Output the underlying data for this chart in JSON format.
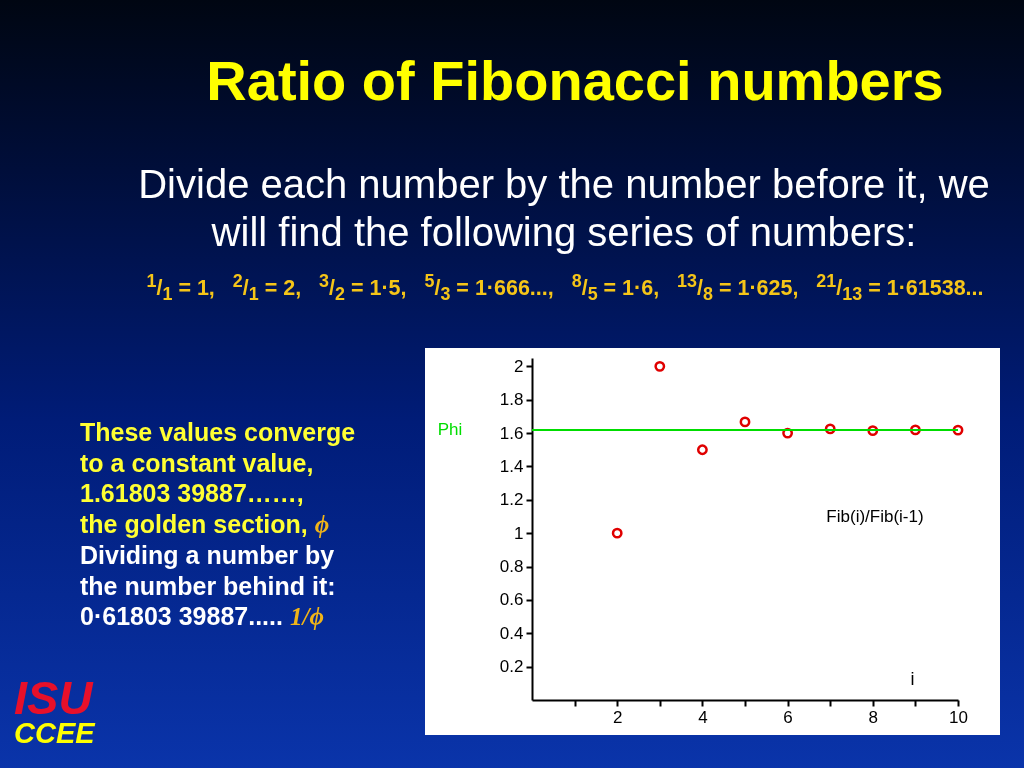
{
  "chart_data": {
    "type": "scatter",
    "title": "Ratio of Fibonacci numbers",
    "subtitle": "Divide each number by the number before it, we will find the following series of numbers:",
    "xlabel": "i",
    "x": [
      2,
      3,
      4,
      5,
      6,
      7,
      8,
      9,
      10
    ],
    "series": [
      {
        "color": "#e00000",
        "values": [
          1,
          2,
          1.5,
          1.667,
          1.6,
          1.625,
          1.615,
          1.619,
          1.618
        ]
      }
    ],
    "marker": "circle",
    "xlim": [
      0,
      10
    ],
    "ylim": [
      0,
      2.05
    ],
    "xticks": [
      {
        "value": 1,
        "label": null
      },
      2,
      {
        "value": 3,
        "label": null
      },
      4,
      {
        "value": 5,
        "label": null
      },
      6,
      {
        "value": 7,
        "label": null
      },
      8,
      {
        "value": 9,
        "label": null
      },
      10
    ],
    "yticks": [
      0.2,
      0.4,
      0.6,
      0.8,
      1,
      1.2,
      1.4,
      1.6,
      1.8,
      2
    ],
    "ref_lines": [
      {
        "axis": "y",
        "value": 1.618,
        "label": "Phi",
        "color": "#00dd00"
      }
    ],
    "annotations": [
      "$^{1}$/$_{1}$ = 1,   $^{2}$/$_{1}$ = 2,   $^{3}$/$_{2}$ = 1·5,   $^{5}$/$_{3}$ = 1·666...,   $^{8}$/$_{5}$ = 1·6,   $^{13}$/$_{8}$ = 1·625,   $^{21}$/$_{13}$ = 1·61538...",
      "These values converge",
      "to a constant value,",
      "1.61803 39887……,",
      "the golden section,",
      "ϕ",
      "Dividing a number by",
      "the number behind it:",
      "0·61803 39887.....",
      "1/ϕ",
      "Fib(i)/Fib(i-1)",
      "ISU",
      "CCEE"
    ]
  }
}
